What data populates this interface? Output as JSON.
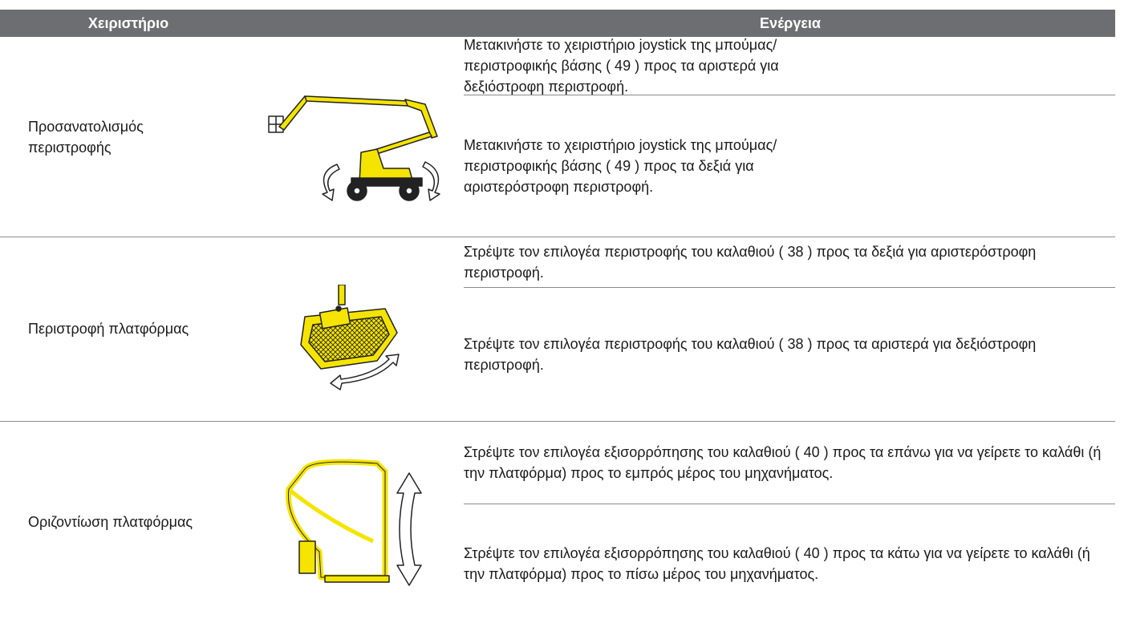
{
  "header": {
    "columns": [
      "Χειριστήριο",
      "Ενέργεια"
    ]
  },
  "table": {
    "rows": [
      {
        "control": "Προσανατολισμός περιστροφής",
        "actions": [
          "Μετακινήστε το χειριστήριο joystick της μπούμας/περιστροφικής βάσης ( 49 ) προς τα αριστερά για δεξιόστροφη περιστροφή.",
          "Μετακινήστε το χειριστήριο joystick της μπούμας/περιστροφικής βάσης ( 49 ) προς τα δεξιά για αριστερόστροφη περιστροφή."
        ]
      },
      {
        "control": "Περιστροφή πλατφόρμας",
        "actions": [
          "Στρέψτε τον επιλογέα περιστροφής του καλαθιού ( 38 ) προς τα δεξιά για αριστερόστροφη περιστροφή.",
          "Στρέψτε τον επιλογέα περιστροφής του καλαθιού ( 38 ) προς τα αριστερά για δεξιόστροφη περιστροφή."
        ]
      },
      {
        "control": "Οριζοντίωση πλατφόρμας",
        "actions": [
          "Στρέψτε τον επιλογέα εξισορρόπησης του καλαθιού ( 40 ) προς τα επάνω για να γείρετε το καλάθι (ή την πλατφόρμα) προς το εμπρός μέρος του μηχανήματος.",
          "Στρέψτε τον επιλογέα εξισορρόπησης του καλαθιού ( 40 ) προς τα κάτω για να γείρετε το καλάθι (ή την πλατφόρμα) προς το πίσω μέρος του μηχανήματος."
        ]
      }
    ]
  }
}
